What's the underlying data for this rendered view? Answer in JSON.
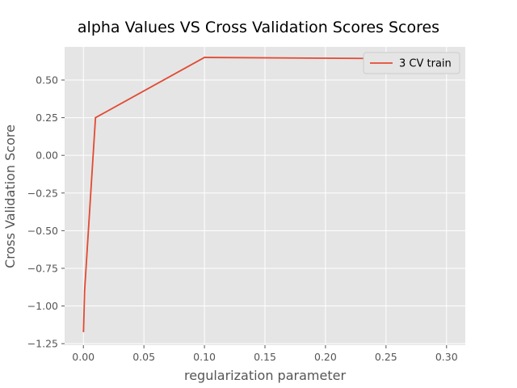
{
  "chart_data": {
    "type": "line",
    "title": "alpha Values VS Cross Validation Scores Scores",
    "xlabel": "regularization parameter",
    "ylabel": "Cross Validation Score",
    "xlim": [
      -0.0155,
      0.3155
    ],
    "ylim": [
      -1.26,
      0.72
    ],
    "xticks": [
      0.0,
      0.05,
      0.1,
      0.15,
      0.2,
      0.25,
      0.3
    ],
    "xtick_labels": [
      "0.00",
      "0.05",
      "0.10",
      "0.15",
      "0.20",
      "0.25",
      "0.30"
    ],
    "yticks": [
      -1.25,
      -1.0,
      -0.75,
      -0.5,
      -0.25,
      0.0,
      0.25,
      0.5
    ],
    "ytick_labels": [
      "−1.25",
      "−1.00",
      "−0.75",
      "−0.50",
      "−0.25",
      "0.00",
      "0.25",
      "0.50"
    ],
    "grid": true,
    "legend_position": "top-right",
    "series": [
      {
        "name": "3 CV train",
        "color": "#E24A33",
        "x": [
          0.0001,
          0.001,
          0.01,
          0.1,
          0.3
        ],
        "y": [
          -1.17,
          -0.9,
          0.25,
          0.65,
          0.64
        ]
      }
    ]
  }
}
